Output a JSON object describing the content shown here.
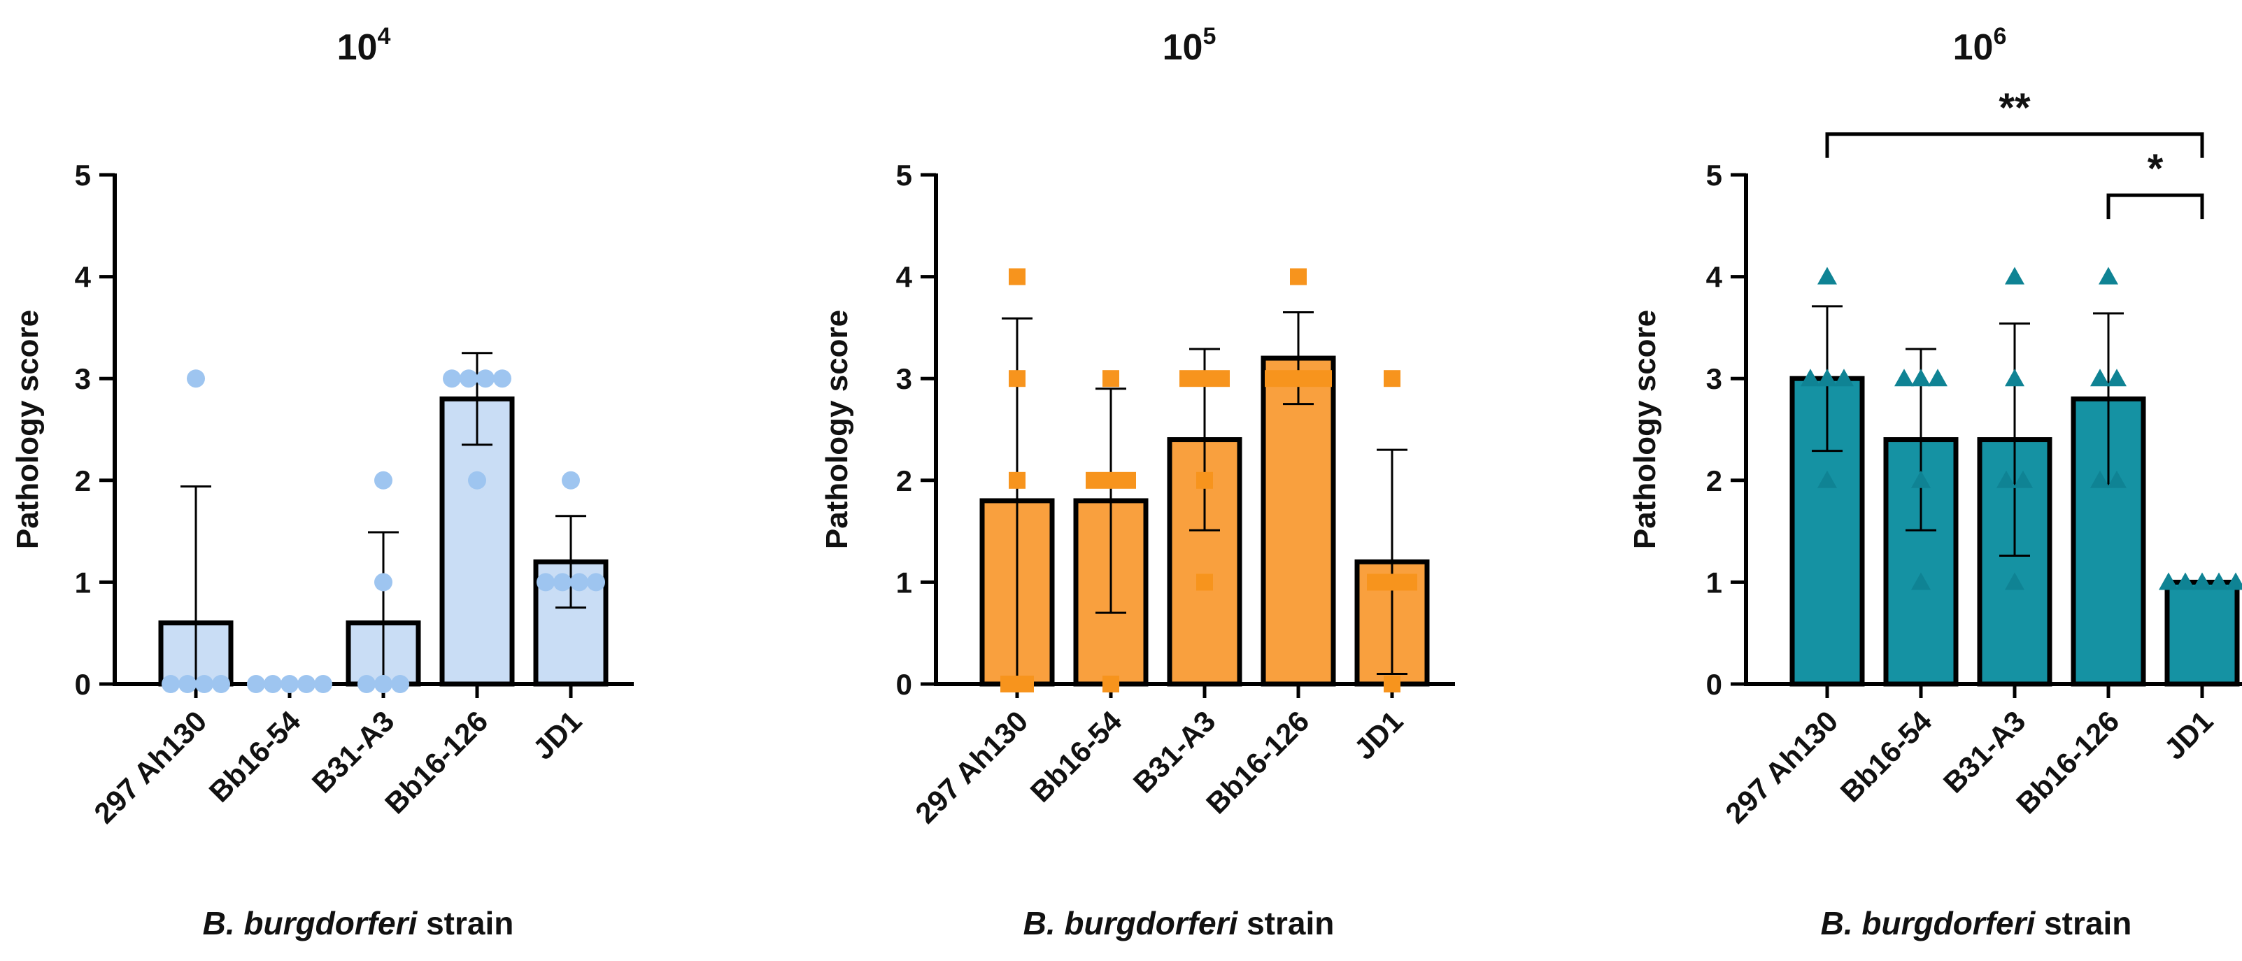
{
  "chart_data": [
    {
      "type": "bar",
      "panel": "left",
      "title_base": "10",
      "title_exp": "4",
      "ylabel": "Pathology score",
      "xlabel_italic": "B. burgdorferi",
      "xlabel_rest": " strain",
      "ylim": [
        0,
        5
      ],
      "yticks": [
        "0",
        "1",
        "2",
        "3",
        "4",
        "5"
      ],
      "categories": [
        "297 Ah130",
        "Bb16-54",
        "B31-A3",
        "Bb16-126",
        "JD1"
      ],
      "values": [
        0.6,
        0.0,
        0.6,
        2.8,
        1.2
      ],
      "errors": [
        1.34,
        0.0,
        0.89,
        0.45,
        0.45
      ],
      "points": [
        [
          0,
          0,
          0,
          0,
          3
        ],
        [
          0,
          0,
          0,
          0,
          0
        ],
        [
          0,
          0,
          0,
          1,
          2
        ],
        [
          2,
          3,
          3,
          3,
          3
        ],
        [
          1,
          1,
          1,
          1,
          2
        ]
      ],
      "marker": "circle",
      "bar_color": "#c9ddf5",
      "point_color": "#9ec5f0",
      "significance": []
    },
    {
      "type": "bar",
      "panel": "middle",
      "title_base": "10",
      "title_exp": "5",
      "ylabel": "Pathology score",
      "xlabel_italic": "B. burgdorferi",
      "xlabel_rest": " strain",
      "ylim": [
        0,
        5
      ],
      "yticks": [
        "0",
        "1",
        "2",
        "3",
        "4",
        "5"
      ],
      "categories": [
        "297 Ah130",
        "Bb16-54",
        "B31-A3",
        "Bb16-126",
        "JD1"
      ],
      "values": [
        1.8,
        1.8,
        2.4,
        3.2,
        1.2
      ],
      "errors": [
        1.79,
        1.1,
        0.89,
        0.45,
        1.1
      ],
      "points": [
        [
          0,
          0,
          2,
          3,
          4
        ],
        [
          0,
          2,
          2,
          2,
          3
        ],
        [
          1,
          2,
          3,
          3,
          3
        ],
        [
          3,
          3,
          3,
          3,
          4
        ],
        [
          0,
          1,
          1,
          1,
          3
        ]
      ],
      "marker": "square",
      "bar_color": "#f9a03e",
      "point_color": "#f7941d",
      "significance": []
    },
    {
      "type": "bar",
      "panel": "right",
      "title_base": "10",
      "title_exp": "6",
      "ylabel": "Pathology score",
      "xlabel_italic": "B. burgdorferi",
      "xlabel_rest": " strain",
      "ylim": [
        0,
        5
      ],
      "yticks": [
        "0",
        "1",
        "2",
        "3",
        "4",
        "5"
      ],
      "categories": [
        "297 Ah130",
        "Bb16-54",
        "B31-A3",
        "Bb16-126",
        "JD1"
      ],
      "values": [
        3.0,
        2.4,
        2.4,
        2.8,
        1.0
      ],
      "errors": [
        0.71,
        0.89,
        1.14,
        0.84,
        0.0
      ],
      "points": [
        [
          2,
          3,
          3,
          3,
          4
        ],
        [
          1,
          2,
          3,
          3,
          3
        ],
        [
          1,
          2,
          2,
          3,
          4
        ],
        [
          2,
          2,
          3,
          3,
          4
        ],
        [
          1,
          1,
          1,
          1,
          1
        ]
      ],
      "marker": "triangle",
      "bar_color": "#1592a3",
      "point_color": "#0f8394",
      "significance": [
        {
          "from": 0,
          "to": 4,
          "label": "**",
          "level": 5.4
        },
        {
          "from": 3,
          "to": 4,
          "label": "*",
          "level": 4.8
        }
      ]
    }
  ]
}
